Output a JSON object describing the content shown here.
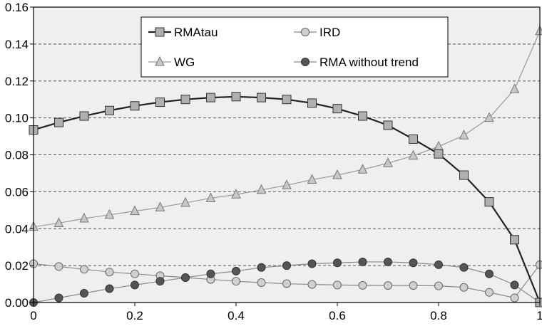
{
  "chart_data": {
    "type": "line",
    "title": "",
    "xlabel": "",
    "ylabel": "",
    "xlim": [
      0,
      1
    ],
    "ylim": [
      0,
      0.16
    ],
    "x_ticks": [
      "0",
      "0.2",
      "0.4",
      "0.6",
      "0.8",
      "1"
    ],
    "y_ticks": [
      "0.00",
      "0.02",
      "0.04",
      "0.06",
      "0.08",
      "0.10",
      "0.12",
      "0.14",
      "0.16"
    ],
    "grid": "horizontal dashed",
    "legend_position": "top-center",
    "x": [
      0,
      0.05,
      0.1,
      0.15,
      0.2,
      0.25,
      0.3,
      0.35,
      0.4,
      0.45,
      0.5,
      0.55,
      0.6,
      0.65,
      0.7,
      0.75,
      0.8,
      0.85,
      0.9,
      0.95,
      1
    ],
    "series": [
      {
        "name": "RMAtau",
        "marker": "square",
        "color": "#222222",
        "marker_fill": "#b0b0b0",
        "values": [
          0.0935,
          0.0975,
          0.101,
          0.104,
          0.1065,
          0.1085,
          0.11,
          0.111,
          0.1115,
          0.111,
          0.11,
          0.108,
          0.105,
          0.101,
          0.096,
          0.0885,
          0.0805,
          0.069,
          0.0545,
          0.034,
          0.0
        ]
      },
      {
        "name": "IRD",
        "marker": "circle",
        "color": "#888888",
        "marker_fill": "#d0d0d0",
        "values": [
          0.021,
          0.0195,
          0.018,
          0.0165,
          0.0155,
          0.0145,
          0.0135,
          0.0125,
          0.0115,
          0.0108,
          0.0102,
          0.0098,
          0.0095,
          0.0093,
          0.0092,
          0.0092,
          0.009,
          0.0082,
          0.0055,
          0.0025,
          0.0205
        ]
      },
      {
        "name": "WG",
        "marker": "triangle",
        "color": "#999999",
        "marker_fill": "#c8c8c8",
        "values": [
          0.041,
          0.043,
          0.0455,
          0.0475,
          0.0495,
          0.0515,
          0.054,
          0.0565,
          0.0585,
          0.061,
          0.0635,
          0.0665,
          0.069,
          0.072,
          0.0755,
          0.0795,
          0.0845,
          0.0905,
          0.1,
          0.1155,
          0.147
        ]
      },
      {
        "name": "RMA without trend",
        "marker": "filled-circle",
        "color": "#888888",
        "marker_fill": "#555555",
        "values": [
          0.0,
          0.0025,
          0.005,
          0.0075,
          0.0095,
          0.0115,
          0.0135,
          0.0155,
          0.017,
          0.019,
          0.02,
          0.021,
          0.0215,
          0.022,
          0.022,
          0.0215,
          0.0205,
          0.019,
          0.0155,
          0.0095,
          0.0
        ]
      }
    ],
    "legend": [
      {
        "label": "RMAtau",
        "series_index": 0
      },
      {
        "label": "IRD",
        "series_index": 1
      },
      {
        "label": "WG",
        "series_index": 2
      },
      {
        "label": "RMA without trend",
        "series_index": 3
      }
    ]
  },
  "colors": {
    "plot_background": "#efefef",
    "grid": "#555555",
    "axis": "#000000"
  }
}
